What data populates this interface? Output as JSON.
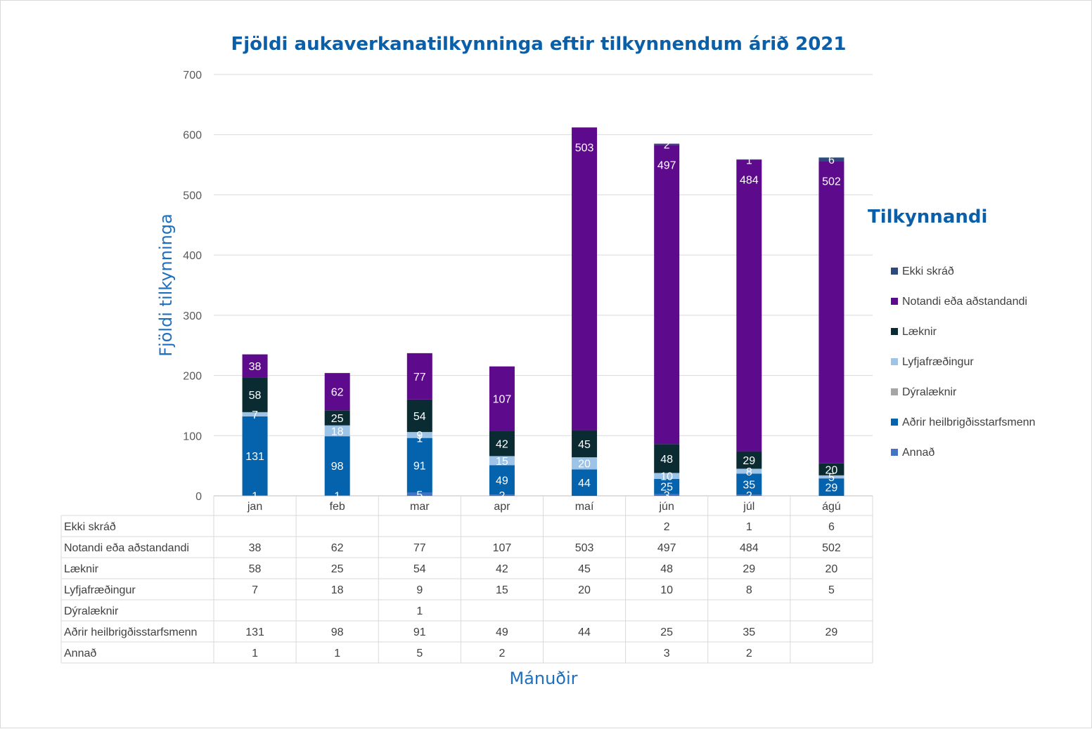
{
  "chart_data": {
    "type": "bar",
    "stacked": true,
    "title": "Fjöldi aukaverkanatilkynninga eftir tilkynnendum árið 2021",
    "ylabel": "Fjöldi tilkynninga",
    "xlabel": "Mánuðir",
    "ylim": [
      0,
      700
    ],
    "yticks": [
      0,
      100,
      200,
      300,
      400,
      500,
      600,
      700
    ],
    "grid": true,
    "legend_title": "Tilkynnandi",
    "legend_position": "right",
    "categories": [
      "jan",
      "feb",
      "mar",
      "apr",
      "maí",
      "jún",
      "júl",
      "ágú"
    ],
    "series": [
      {
        "name": "Annað",
        "color": "#4472c4",
        "values": [
          1,
          1,
          5,
          2,
          null,
          3,
          2,
          null
        ]
      },
      {
        "name": "Aðrir heilbrigðisstarfsmenn",
        "color": "#0563ad",
        "values": [
          131,
          98,
          91,
          49,
          44,
          25,
          35,
          29
        ]
      },
      {
        "name": "Dýralæknir",
        "color": "#a5a5a5",
        "values": [
          null,
          null,
          1,
          null,
          null,
          null,
          null,
          null
        ]
      },
      {
        "name": "Lyfjafræðingur",
        "color": "#9dc3e6",
        "values": [
          7,
          18,
          9,
          15,
          20,
          10,
          8,
          5
        ]
      },
      {
        "name": "Læknir",
        "color": "#0b2b33",
        "values": [
          58,
          25,
          54,
          42,
          45,
          48,
          29,
          20
        ]
      },
      {
        "name": "Notandi eða aðstandandi",
        "color": "#5e0a8c",
        "values": [
          38,
          62,
          77,
          107,
          503,
          497,
          484,
          502
        ]
      },
      {
        "name": "Ekki skráð",
        "color": "#2c4a7c",
        "values": [
          null,
          null,
          null,
          null,
          null,
          2,
          1,
          6
        ]
      }
    ]
  }
}
